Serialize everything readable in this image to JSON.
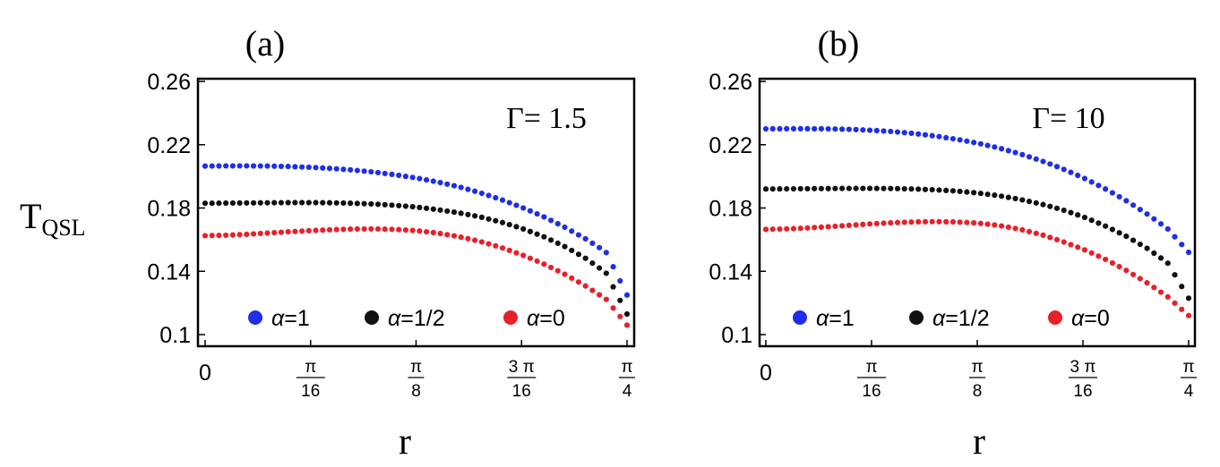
{
  "figure": {
    "ylabel_main": "T",
    "ylabel_sub": "QSL"
  },
  "chart_data": [
    {
      "type": "scatter",
      "panel_label": "(a)",
      "annotation": "Γ= 1.5",
      "xlabel": "r",
      "ylabel": "T_QSL",
      "xlim": [
        0,
        0.7854
      ],
      "ylim": [
        0.09,
        0.26
      ],
      "y_ticks": [
        {
          "value": 0.1,
          "label": "0.1"
        },
        {
          "value": 0.14,
          "label": "0.14"
        },
        {
          "value": 0.18,
          "label": "0.18"
        },
        {
          "value": 0.22,
          "label": "0.22"
        },
        {
          "value": 0.26,
          "label": "0.26"
        }
      ],
      "x_ticks": [
        {
          "value": 0,
          "label": "0"
        },
        {
          "value": 0.19635,
          "num": "π",
          "den": "16"
        },
        {
          "value": 0.3927,
          "num": "π",
          "den": "8"
        },
        {
          "value": 0.58905,
          "num": "3 π",
          "den": "16"
        },
        {
          "value": 0.7854,
          "num": "π",
          "den": "4"
        }
      ],
      "legend": [
        "α=1",
        "α=1/2",
        "α=0"
      ],
      "x": [
        0,
        0.0393,
        0.0785,
        0.1178,
        0.1571,
        0.1963,
        0.2356,
        0.2749,
        0.3142,
        0.3534,
        0.3927,
        0.432,
        0.4712,
        0.5105,
        0.5498,
        0.589,
        0.6283,
        0.6676,
        0.7069,
        0.7461,
        0.7854
      ],
      "series": [
        {
          "name": "α=1",
          "color": "#1f2ee8",
          "values": [
            0.2065,
            0.2066,
            0.2066,
            0.2065,
            0.2062,
            0.2057,
            0.205,
            0.204,
            0.2027,
            0.201,
            0.199,
            0.1965,
            0.1935,
            0.1898,
            0.1855,
            0.1805,
            0.1748,
            0.1682,
            0.1608,
            0.1523,
            0.125
          ]
        },
        {
          "name": "α=1/2",
          "color": "#111111",
          "values": [
            0.183,
            0.1831,
            0.1832,
            0.1833,
            0.1834,
            0.1834,
            0.1833,
            0.183,
            0.1825,
            0.1817,
            0.1806,
            0.179,
            0.177,
            0.1745,
            0.1712,
            0.1672,
            0.1622,
            0.156,
            0.1485,
            0.1392,
            0.113
          ]
        },
        {
          "name": "α=0",
          "color": "#e8202a",
          "values": [
            0.1625,
            0.1628,
            0.1634,
            0.1642,
            0.165,
            0.1657,
            0.1663,
            0.1667,
            0.1668,
            0.1665,
            0.1657,
            0.1642,
            0.162,
            0.159,
            0.1552,
            0.1505,
            0.145,
            0.1385,
            0.131,
            0.1225,
            0.106
          ]
        }
      ]
    },
    {
      "type": "scatter",
      "panel_label": "(b)",
      "annotation": "Γ= 10",
      "xlabel": "r",
      "ylabel": "T_QSL",
      "xlim": [
        0,
        0.7854
      ],
      "ylim": [
        0.09,
        0.26
      ],
      "y_ticks": [
        {
          "value": 0.1,
          "label": "0.1"
        },
        {
          "value": 0.14,
          "label": "0.14"
        },
        {
          "value": 0.18,
          "label": "0.18"
        },
        {
          "value": 0.22,
          "label": "0.22"
        },
        {
          "value": 0.26,
          "label": "0.26"
        }
      ],
      "x_ticks": [
        {
          "value": 0,
          "label": "0"
        },
        {
          "value": 0.19635,
          "num": "π",
          "den": "16"
        },
        {
          "value": 0.3927,
          "num": "π",
          "den": "8"
        },
        {
          "value": 0.58905,
          "num": "3 π",
          "den": "16"
        },
        {
          "value": 0.7854,
          "num": "π",
          "den": "4"
        }
      ],
      "legend": [
        "α=1",
        "α=1/2",
        "α=0"
      ],
      "x": [
        0,
        0.0393,
        0.0785,
        0.1178,
        0.1571,
        0.1963,
        0.2356,
        0.2749,
        0.3142,
        0.3534,
        0.3927,
        0.432,
        0.4712,
        0.5105,
        0.5498,
        0.589,
        0.6283,
        0.6676,
        0.7069,
        0.7461,
        0.7854
      ],
      "series": [
        {
          "name": "α=1",
          "color": "#1f2ee8",
          "values": [
            0.23,
            0.2301,
            0.2301,
            0.23,
            0.2297,
            0.2291,
            0.2283,
            0.2271,
            0.2255,
            0.2235,
            0.221,
            0.218,
            0.2143,
            0.21,
            0.205,
            0.1992,
            0.1925,
            0.185,
            0.1765,
            0.167,
            0.152
          ]
        },
        {
          "name": "α=1/2",
          "color": "#111111",
          "values": [
            0.192,
            0.1921,
            0.1922,
            0.1923,
            0.1924,
            0.1924,
            0.1923,
            0.192,
            0.1915,
            0.1907,
            0.1895,
            0.1878,
            0.1855,
            0.1826,
            0.179,
            0.1745,
            0.169,
            0.1625,
            0.1548,
            0.1455,
            0.123
          ]
        },
        {
          "name": "α=0",
          "color": "#e8202a",
          "values": [
            0.1665,
            0.1668,
            0.1674,
            0.1682,
            0.1691,
            0.17,
            0.1707,
            0.1712,
            0.1714,
            0.1712,
            0.1705,
            0.169,
            0.1666,
            0.1633,
            0.159,
            0.154,
            0.148,
            0.141,
            0.133,
            0.124,
            0.112
          ]
        }
      ]
    }
  ]
}
